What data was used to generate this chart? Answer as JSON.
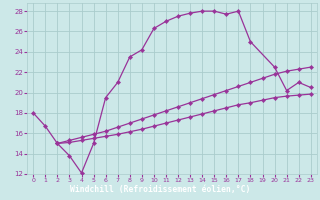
{
  "line1_x": [
    0,
    1,
    2,
    3,
    4,
    5,
    6,
    7,
    8,
    9,
    10,
    11,
    12,
    13,
    14,
    15,
    16,
    17,
    18,
    20,
    21,
    22,
    23
  ],
  "line1_y": [
    18.0,
    16.7,
    15.0,
    13.8,
    12.1,
    15.0,
    19.5,
    21.0,
    23.5,
    24.2,
    26.3,
    27.0,
    27.5,
    27.8,
    28.0,
    28.0,
    27.7,
    28.0,
    25.0,
    22.5,
    20.2,
    21.0,
    20.5
  ],
  "line2_x": [
    2,
    3,
    4,
    5,
    6,
    7,
    8,
    9,
    10,
    11,
    12,
    13,
    14,
    15,
    16,
    17,
    18,
    19,
    20,
    21,
    22,
    23
  ],
  "line2_y": [
    15.0,
    15.3,
    15.6,
    15.9,
    16.2,
    16.6,
    17.0,
    17.4,
    17.8,
    18.2,
    18.6,
    19.0,
    19.4,
    19.8,
    20.2,
    20.6,
    21.0,
    21.4,
    21.8,
    22.1,
    22.3,
    22.5
  ],
  "line3_x": [
    2,
    3,
    4,
    5,
    6,
    7,
    8,
    9,
    10,
    11,
    12,
    13,
    14,
    15,
    16,
    17,
    18,
    19,
    20,
    21,
    22,
    23
  ],
  "line3_y": [
    15.0,
    15.1,
    15.3,
    15.5,
    15.7,
    15.9,
    16.15,
    16.4,
    16.7,
    17.0,
    17.3,
    17.6,
    17.9,
    18.2,
    18.5,
    18.8,
    19.0,
    19.25,
    19.5,
    19.65,
    19.75,
    19.85
  ],
  "line_color": "#993399",
  "marker": "D",
  "marker_size": 2.2,
  "bg_color": "#cce8e8",
  "grid_color": "#aacccc",
  "xlabel": "Windchill (Refroidissement éolien,°C)",
  "xlabel_bg": "#7700aa",
  "xlabel_fg": "#ffffff",
  "xlim": [
    -0.5,
    23.5
  ],
  "ylim": [
    12,
    28.8
  ],
  "yticks": [
    12,
    14,
    16,
    18,
    20,
    22,
    24,
    26,
    28
  ],
  "xticks": [
    0,
    1,
    2,
    3,
    4,
    5,
    6,
    7,
    8,
    9,
    10,
    11,
    12,
    13,
    14,
    15,
    16,
    17,
    18,
    19,
    20,
    21,
    22,
    23
  ]
}
